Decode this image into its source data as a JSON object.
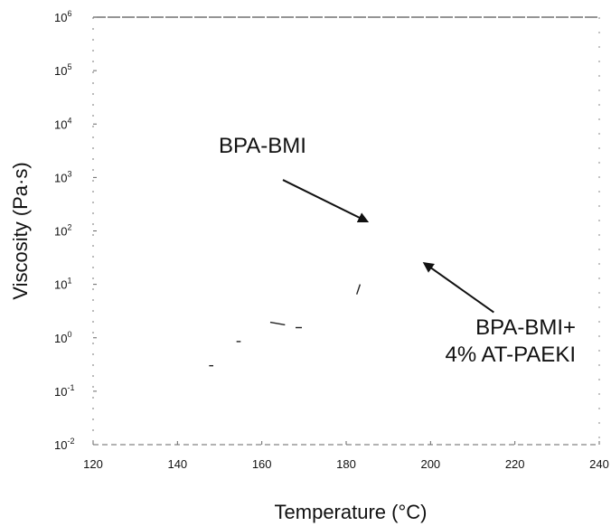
{
  "chart_data": {
    "type": "line",
    "title": "",
    "xlabel": "Temperature (°C)",
    "ylabel": "Viscosity (Pa·s)",
    "x_scale": "linear",
    "y_scale": "log",
    "xlim": [
      120,
      240
    ],
    "ylim": [
      0.01,
      1000000
    ],
    "x_ticks": [
      {
        "value": 120,
        "label": "120"
      },
      {
        "value": 140,
        "label": "140"
      },
      {
        "value": 160,
        "label": "160"
      },
      {
        "value": 180,
        "label": "180"
      },
      {
        "value": 200,
        "label": "200"
      },
      {
        "value": 220,
        "label": "220"
      },
      {
        "value": 240,
        "label": "240"
      }
    ],
    "y_ticks": [
      {
        "value": 0.01,
        "base": "10",
        "exp": "-2"
      },
      {
        "value": 0.1,
        "base": "10",
        "exp": "-1"
      },
      {
        "value": 1,
        "base": "10",
        "exp": "0"
      },
      {
        "value": 10,
        "base": "10",
        "exp": "1"
      },
      {
        "value": 100,
        "base": "10",
        "exp": "2"
      },
      {
        "value": 1000,
        "base": "10",
        "exp": "3"
      },
      {
        "value": 10000,
        "base": "10",
        "exp": "4"
      },
      {
        "value": 100000,
        "base": "10",
        "exp": "5"
      },
      {
        "value": 1000000,
        "base": "10",
        "exp": "6"
      }
    ],
    "grid": false,
    "series": [
      {
        "color": "#222222",
        "points": [
          {
            "x": 147.5,
            "y": 0.3
          },
          {
            "x": 148.5,
            "y": 0.3
          },
          {
            "x": 154.0,
            "y": 0.85
          },
          {
            "x": 155.0,
            "y": 0.85
          },
          {
            "x": 162.0,
            "y": 1.95
          },
          {
            "x": 165.5,
            "y": 1.75
          },
          {
            "x": 168.0,
            "y": 1.55
          },
          {
            "x": 169.5,
            "y": 1.55
          },
          {
            "x": 182.5,
            "y": 6.5
          },
          {
            "x": 183.3,
            "y": 10
          }
        ]
      }
    ],
    "annotations": [
      {
        "text": "BPA-BMI",
        "lines": [
          "BPA-BMI"
        ],
        "arrow_from": {
          "x": 165,
          "y": 900
        },
        "arrow_to": {
          "x": 185,
          "y": 150
        }
      },
      {
        "text": "BPA-BMI+ 4% AT-PAEKI",
        "lines": [
          "BPA-BMI+",
          "4% AT-PAEKI"
        ],
        "arrow_from": {
          "x": 215,
          "y": 3
        },
        "arrow_to": {
          "x": 198.5,
          "y": 25
        }
      }
    ]
  }
}
